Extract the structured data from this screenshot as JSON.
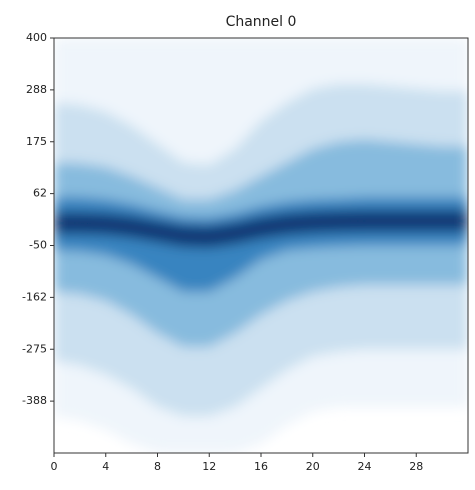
{
  "chart_data": {
    "type": "density",
    "title": "Channel 0",
    "x": [
      0,
      2,
      4,
      6,
      8,
      10,
      12,
      14,
      16,
      18,
      20,
      22,
      24,
      26,
      28,
      30,
      32
    ],
    "series": [
      {
        "color": "#edf4fb",
        "high": [
          400,
          400,
          400,
          400,
          400,
          400,
          400,
          400,
          400,
          400,
          400,
          400,
          400,
          400,
          400,
          400,
          400
        ],
        "low": [
          -420,
          -430,
          -450,
          -480,
          -500,
          -500,
          -500,
          -500,
          -480,
          -440,
          -410,
          -400,
          -400,
          -400,
          -400,
          -400,
          -400
        ]
      },
      {
        "color": "#c8def0",
        "high": [
          260,
          255,
          240,
          210,
          170,
          130,
          125,
          160,
          220,
          260,
          290,
          300,
          300,
          295,
          290,
          285,
          285
        ],
        "low": [
          -300,
          -310,
          -330,
          -360,
          -400,
          -420,
          -420,
          -400,
          -360,
          -320,
          -290,
          -280,
          -275,
          -275,
          -275,
          -275,
          -275
        ]
      },
      {
        "color": "#7fb7dc",
        "high": [
          130,
          128,
          120,
          100,
          75,
          50,
          50,
          70,
          100,
          130,
          160,
          175,
          180,
          175,
          170,
          165,
          165
        ],
        "low": [
          -150,
          -155,
          -170,
          -200,
          -240,
          -270,
          -270,
          -240,
          -200,
          -170,
          -150,
          -140,
          -135,
          -135,
          -135,
          -135,
          -135
        ]
      },
      {
        "color": "#2f7ebc",
        "high": [
          55,
          55,
          50,
          40,
          25,
          12,
          10,
          20,
          35,
          45,
          50,
          52,
          55,
          55,
          55,
          55,
          55
        ],
        "low": [
          -60,
          -62,
          -70,
          -90,
          -120,
          -150,
          -150,
          -120,
          -80,
          -60,
          -55,
          -52,
          -50,
          -50,
          -50,
          -50,
          -50
        ]
      },
      {
        "color": "#08306b",
        "high": [
          22,
          22,
          20,
          14,
          4,
          -6,
          -8,
          0,
          12,
          20,
          24,
          26,
          27,
          27,
          27,
          27,
          27
        ],
        "low": [
          -25,
          -25,
          -27,
          -33,
          -43,
          -53,
          -55,
          -47,
          -35,
          -27,
          -23,
          -21,
          -20,
          -20,
          -20,
          -20,
          -20
        ]
      }
    ],
    "xlim": [
      0,
      32
    ],
    "xticks": [
      0,
      4,
      8,
      12,
      16,
      20,
      24,
      28
    ],
    "ylim": [
      -500,
      400
    ],
    "yticks": [
      400,
      {
        "value": 287.5,
        "label": "288"
      },
      175,
      {
        "value": 62.5,
        "label": "62"
      },
      -50,
      {
        "value": -162.5,
        "label": "-162"
      },
      -275,
      {
        "value": -387.5,
        "label": "-388"
      }
    ]
  }
}
